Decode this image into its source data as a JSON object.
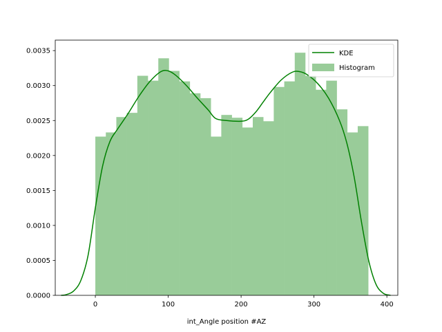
{
  "chart_data": {
    "type": "bar",
    "title": "",
    "xlabel": "int_Angle position  #AZ",
    "ylabel": "",
    "xlim": [
      -55,
      415
    ],
    "ylim": [
      0,
      0.00365
    ],
    "xticks": [
      0,
      100,
      200,
      300,
      400
    ],
    "xtick_labels": [
      "0",
      "100",
      "200",
      "300",
      "400"
    ],
    "yticks": [
      0,
      0.0005,
      0.001,
      0.0015,
      0.002,
      0.0025,
      0.003,
      0.0035
    ],
    "ytick_labels": [
      "0.0000",
      "0.0005",
      "0.0010",
      "0.0015",
      "0.0020",
      "0.0025",
      "0.0030",
      "0.0035"
    ],
    "grid": false,
    "legend": {
      "position": "top-right",
      "entries": [
        "KDE",
        "Histogram"
      ]
    },
    "histogram": {
      "name": "Histogram",
      "color": "#99cc99",
      "bin_start": 0,
      "bin_width": 14.4,
      "values": [
        0.00227,
        0.00233,
        0.00255,
        0.00261,
        0.00314,
        0.00307,
        0.00339,
        0.00321,
        0.00306,
        0.00289,
        0.00282,
        0.00227,
        0.00258,
        0.00254,
        0.0024,
        0.00255,
        0.00249,
        0.00298,
        0.00306,
        0.00347,
        0.00314,
        0.00294,
        0.00307,
        0.00266,
        0.00233,
        0.00242
      ]
    },
    "kde": {
      "name": "KDE",
      "color": "#008000",
      "x": [
        -47,
        -40,
        -30,
        -20,
        -10,
        0,
        10,
        20,
        30,
        45,
        60,
        75,
        90,
        100,
        110,
        125,
        140,
        155,
        165,
        180,
        200,
        210,
        220,
        230,
        240,
        255,
        270,
        280,
        290,
        305,
        320,
        335,
        345,
        355,
        365,
        375,
        385,
        395,
        405
      ],
      "y": [
        0.0,
        1e-05,
        6e-05,
        0.00021,
        0.00057,
        0.00125,
        0.00185,
        0.0022,
        0.00237,
        0.0026,
        0.00285,
        0.00306,
        0.0032,
        0.00321,
        0.00315,
        0.003,
        0.00282,
        0.00265,
        0.00253,
        0.0025,
        0.00249,
        0.00252,
        0.00262,
        0.00276,
        0.0029,
        0.00308,
        0.00319,
        0.0032,
        0.00316,
        0.00303,
        0.00282,
        0.0025,
        0.00218,
        0.0017,
        0.00106,
        0.0005,
        0.00016,
        3e-05,
        0.0
      ]
    }
  }
}
